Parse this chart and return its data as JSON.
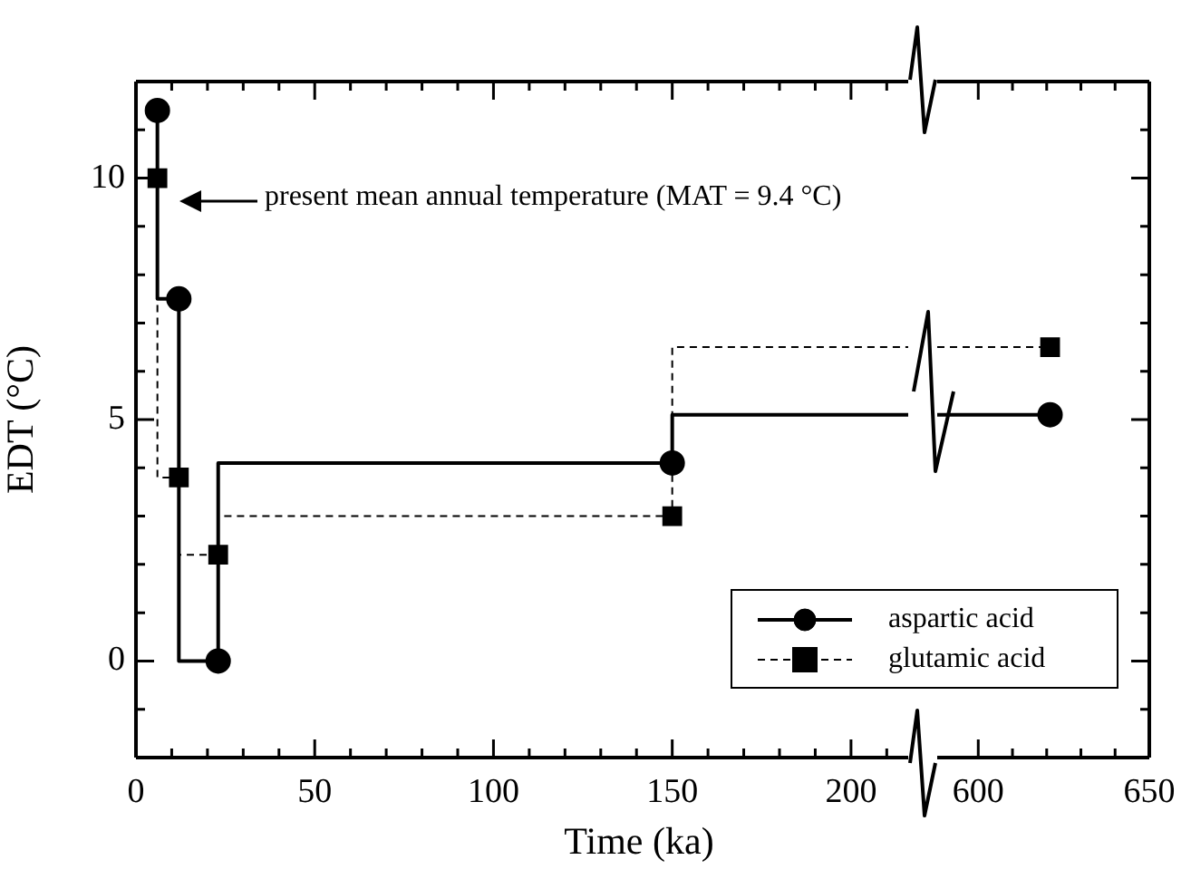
{
  "chart_data": [
    {
      "type": "step",
      "xlabel": "Time (ka)",
      "ylabel": "EDT (°C)",
      "xlim": [
        0,
        216
      ],
      "ylim": [
        -2,
        12
      ],
      "xticks": [
        0,
        {
          "value": 10,
          "label": null
        },
        {
          "value": 20,
          "label": null
        },
        {
          "value": 30,
          "label": null
        },
        {
          "value": 40,
          "label": null
        },
        50,
        {
          "value": 60,
          "label": null
        },
        {
          "value": 70,
          "label": null
        },
        {
          "value": 80,
          "label": null
        },
        {
          "value": 90,
          "label": null
        },
        100,
        {
          "value": 110,
          "label": null
        },
        {
          "value": 120,
          "label": null
        },
        {
          "value": 130,
          "label": null
        },
        {
          "value": 140,
          "label": null
        },
        150,
        {
          "value": 160,
          "label": null
        },
        {
          "value": 170,
          "label": null
        },
        {
          "value": 180,
          "label": null
        },
        {
          "value": 190,
          "label": null
        },
        200,
        {
          "value": 210,
          "label": null
        }
      ],
      "yticks": [
        {
          "value": -1,
          "label": null
        },
        0,
        {
          "value": 1,
          "label": null
        },
        {
          "value": 2,
          "label": null
        },
        {
          "value": 3,
          "label": null
        },
        {
          "value": 4,
          "label": null
        },
        5,
        {
          "value": 6,
          "label": null
        },
        {
          "value": 7,
          "label": null
        },
        {
          "value": 8,
          "label": null
        },
        {
          "value": 9,
          "label": null
        },
        10,
        {
          "value": 11,
          "label": null
        }
      ],
      "grid": false,
      "legend": "bottom right",
      "annotations": [
        "present mean annual temperature (MAT = 9.4 °C)"
      ],
      "series": [
        {
          "name": "aspartic acid",
          "color": "#000000",
          "x": [
            6,
            12,
            23,
            150,
            216
          ],
          "values": [
            11.4,
            7.5,
            0,
            4.1,
            5.1
          ],
          "marker": "circle",
          "line_style": "solid"
        },
        {
          "name": "glutamic acid",
          "color": "#000000",
          "x": [
            6,
            12,
            23,
            150,
            216
          ],
          "values": [
            10.0,
            3.8,
            2.2,
            3.0,
            6.5
          ],
          "marker": "square",
          "line_style": "dashed"
        }
      ]
    },
    {
      "type": "step",
      "xlim": [
        588,
        650
      ],
      "ylim": [
        -2,
        12
      ],
      "tick_labels": "x",
      "xticks": [
        600,
        {
          "value": 610,
          "label": null
        },
        {
          "value": 620,
          "label": null
        },
        {
          "value": 630,
          "label": null
        },
        {
          "value": 640,
          "label": null
        },
        650
      ],
      "yticks": [
        {
          "value": -1,
          "label": null
        },
        0,
        {
          "value": 1,
          "label": null
        },
        {
          "value": 2,
          "label": null
        },
        {
          "value": 3,
          "label": null
        },
        {
          "value": 4,
          "label": null
        },
        5,
        {
          "value": 6,
          "label": null
        },
        {
          "value": 7,
          "label": null
        },
        {
          "value": 8,
          "label": null
        },
        {
          "value": 9,
          "label": null
        },
        10,
        {
          "value": 11,
          "label": null
        }
      ],
      "grid": false,
      "series": [
        {
          "color": "#000000",
          "x": [
            588,
            621
          ],
          "values": [
            5.1,
            5.1
          ],
          "marker": "circle",
          "line_style": "solid"
        },
        {
          "color": "#000000",
          "x": [
            588,
            621
          ],
          "values": [
            6.5,
            6.5
          ],
          "marker": "square",
          "line_style": "dashed"
        }
      ]
    }
  ]
}
